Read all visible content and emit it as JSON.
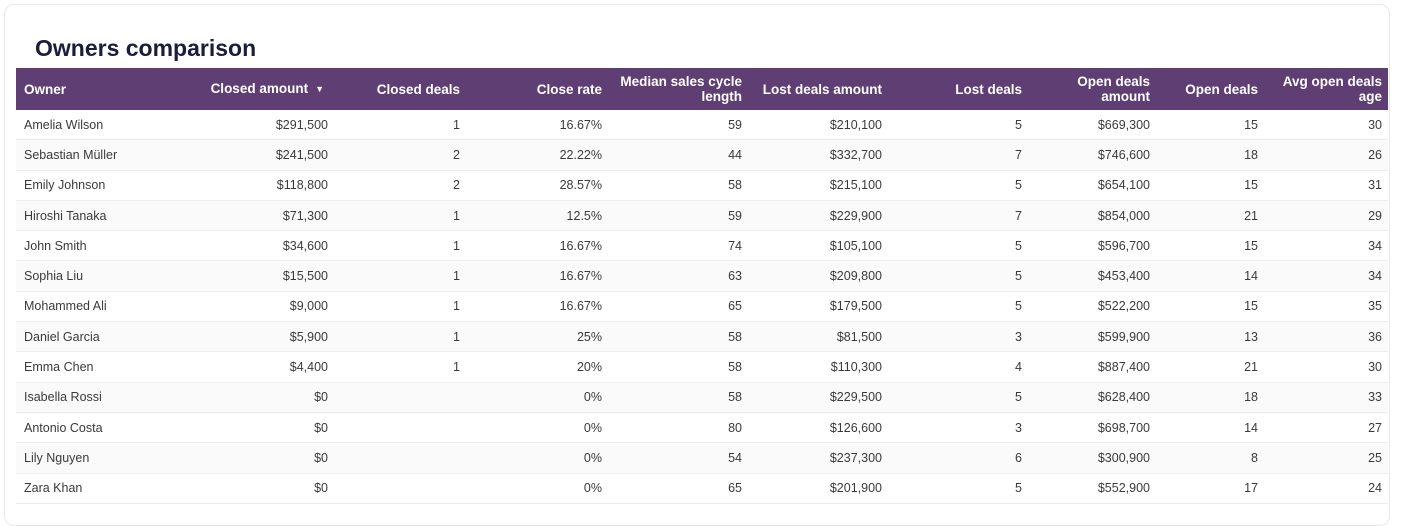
{
  "title": "Owners comparison",
  "colors": {
    "header_bg": "#5f3f73",
    "header_text": "#ffffff",
    "title_text": "#1c1c3c"
  },
  "sort_icon": "caret-down-icon",
  "columns": [
    "Owner",
    "Closed amount",
    "Closed deals",
    "Close rate",
    "Median sales cycle length",
    "Lost deals amount",
    "Lost deals",
    "Open deals amount",
    "Open deals",
    "Avg open deals age"
  ],
  "rows": [
    [
      "Amelia Wilson",
      "$291,500",
      "1",
      "16.67%",
      "59",
      "$210,100",
      "5",
      "$669,300",
      "15",
      "30"
    ],
    [
      "Sebastian Müller",
      "$241,500",
      "2",
      "22.22%",
      "44",
      "$332,700",
      "7",
      "$746,600",
      "18",
      "26"
    ],
    [
      "Emily Johnson",
      "$118,800",
      "2",
      "28.57%",
      "58",
      "$215,100",
      "5",
      "$654,100",
      "15",
      "31"
    ],
    [
      "Hiroshi Tanaka",
      "$71,300",
      "1",
      "12.5%",
      "59",
      "$229,900",
      "7",
      "$854,000",
      "21",
      "29"
    ],
    [
      "John Smith",
      "$34,600",
      "1",
      "16.67%",
      "74",
      "$105,100",
      "5",
      "$596,700",
      "15",
      "34"
    ],
    [
      "Sophia Liu",
      "$15,500",
      "1",
      "16.67%",
      "63",
      "$209,800",
      "5",
      "$453,400",
      "14",
      "34"
    ],
    [
      "Mohammed Ali",
      "$9,000",
      "1",
      "16.67%",
      "65",
      "$179,500",
      "5",
      "$522,200",
      "15",
      "35"
    ],
    [
      "Daniel Garcia",
      "$5,900",
      "1",
      "25%",
      "58",
      "$81,500",
      "3",
      "$599,900",
      "13",
      "36"
    ],
    [
      "Emma Chen",
      "$4,400",
      "1",
      "20%",
      "58",
      "$110,300",
      "4",
      "$887,400",
      "21",
      "30"
    ],
    [
      "Isabella Rossi",
      "$0",
      "",
      "0%",
      "58",
      "$229,500",
      "5",
      "$628,400",
      "18",
      "33"
    ],
    [
      "Antonio Costa",
      "$0",
      "",
      "0%",
      "80",
      "$126,600",
      "3",
      "$698,700",
      "14",
      "27"
    ],
    [
      "Lily Nguyen",
      "$0",
      "",
      "0%",
      "54",
      "$237,300",
      "6",
      "$300,900",
      "8",
      "25"
    ],
    [
      "Zara Khan",
      "$0",
      "",
      "0%",
      "65",
      "$201,900",
      "5",
      "$552,900",
      "17",
      "24"
    ]
  ]
}
